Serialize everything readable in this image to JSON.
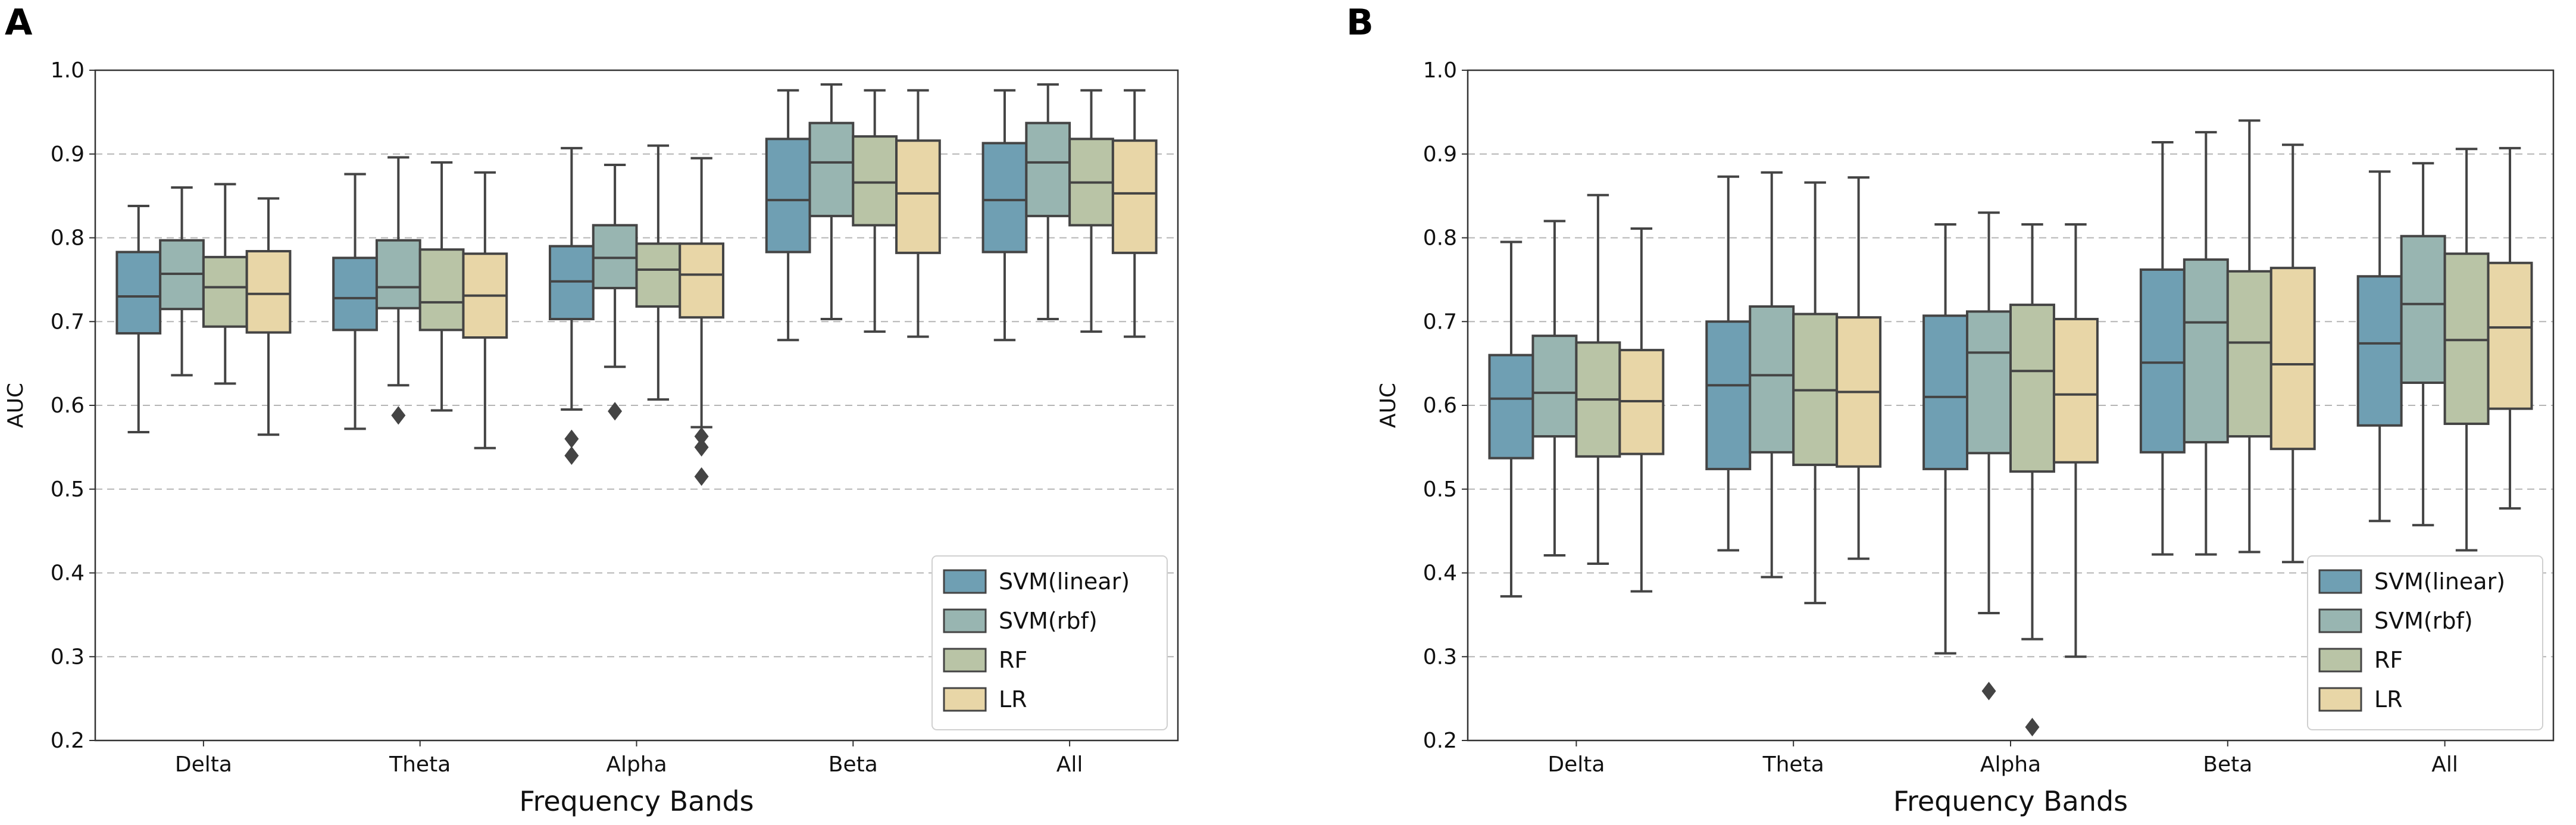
{
  "chart_data": [
    {
      "panel": "A",
      "type": "boxplot",
      "xlabel": "Frequency Bands",
      "ylabel": "AUC",
      "ylim": [
        0.2,
        1.0
      ],
      "yticks": [
        "0.2",
        "0.3",
        "0.4",
        "0.5",
        "0.6",
        "0.7",
        "0.8",
        "0.9",
        "1.0"
      ],
      "grid": "horizontal dashed",
      "legend_position": "lower-right",
      "categories": [
        "Delta",
        "Theta",
        "Alpha",
        "Beta",
        "All"
      ],
      "series": [
        {
          "name": "SVM(linear)",
          "color": "#6f9fb3",
          "boxes": [
            {
              "min": 0.568,
              "q1": 0.686,
              "median": 0.73,
              "q3": 0.783,
              "max": 0.838,
              "outliers": []
            },
            {
              "min": 0.572,
              "q1": 0.69,
              "median": 0.728,
              "q3": 0.776,
              "max": 0.876,
              "outliers": []
            },
            {
              "min": 0.595,
              "q1": 0.703,
              "median": 0.748,
              "q3": 0.79,
              "max": 0.907,
              "outliers": [
                0.56,
                0.54
              ]
            },
            {
              "min": 0.678,
              "q1": 0.783,
              "median": 0.845,
              "q3": 0.918,
              "max": 0.976,
              "outliers": []
            },
            {
              "min": 0.678,
              "q1": 0.783,
              "median": 0.845,
              "q3": 0.913,
              "max": 0.976,
              "outliers": []
            }
          ]
        },
        {
          "name": "SVM(rbf)",
          "color": "#98b5b1",
          "boxes": [
            {
              "min": 0.636,
              "q1": 0.715,
              "median": 0.757,
              "q3": 0.797,
              "max": 0.86,
              "outliers": []
            },
            {
              "min": 0.624,
              "q1": 0.716,
              "median": 0.741,
              "q3": 0.797,
              "max": 0.896,
              "outliers": [
                0.588
              ]
            },
            {
              "min": 0.646,
              "q1": 0.74,
              "median": 0.776,
              "q3": 0.815,
              "max": 0.887,
              "outliers": [
                0.593
              ]
            },
            {
              "min": 0.703,
              "q1": 0.826,
              "median": 0.89,
              "q3": 0.937,
              "max": 0.983,
              "outliers": []
            },
            {
              "min": 0.703,
              "q1": 0.826,
              "median": 0.89,
              "q3": 0.937,
              "max": 0.983,
              "outliers": []
            }
          ]
        },
        {
          "name": "RF",
          "color": "#b9c4a6",
          "boxes": [
            {
              "min": 0.626,
              "q1": 0.694,
              "median": 0.741,
              "q3": 0.777,
              "max": 0.864,
              "outliers": []
            },
            {
              "min": 0.594,
              "q1": 0.69,
              "median": 0.723,
              "q3": 0.786,
              "max": 0.89,
              "outliers": []
            },
            {
              "min": 0.607,
              "q1": 0.718,
              "median": 0.762,
              "q3": 0.793,
              "max": 0.91,
              "outliers": []
            },
            {
              "min": 0.688,
              "q1": 0.815,
              "median": 0.866,
              "q3": 0.921,
              "max": 0.976,
              "outliers": []
            },
            {
              "min": 0.688,
              "q1": 0.815,
              "median": 0.866,
              "q3": 0.918,
              "max": 0.976,
              "outliers": []
            }
          ]
        },
        {
          "name": "LR",
          "color": "#e8d6a7",
          "boxes": [
            {
              "min": 0.565,
              "q1": 0.687,
              "median": 0.733,
              "q3": 0.784,
              "max": 0.847,
              "outliers": []
            },
            {
              "min": 0.549,
              "q1": 0.681,
              "median": 0.731,
              "q3": 0.781,
              "max": 0.878,
              "outliers": []
            },
            {
              "min": 0.574,
              "q1": 0.705,
              "median": 0.756,
              "q3": 0.793,
              "max": 0.895,
              "outliers": [
                0.563,
                0.55,
                0.515
              ]
            },
            {
              "min": 0.682,
              "q1": 0.782,
              "median": 0.853,
              "q3": 0.916,
              "max": 0.976,
              "outliers": []
            },
            {
              "min": 0.682,
              "q1": 0.782,
              "median": 0.853,
              "q3": 0.916,
              "max": 0.976,
              "outliers": []
            }
          ]
        }
      ]
    },
    {
      "panel": "B",
      "type": "boxplot",
      "xlabel": "Frequency Bands",
      "ylabel": "AUC",
      "ylim": [
        0.2,
        1.0
      ],
      "yticks": [
        "0.2",
        "0.3",
        "0.4",
        "0.5",
        "0.6",
        "0.7",
        "0.8",
        "0.9",
        "1.0"
      ],
      "grid": "horizontal dashed",
      "legend_position": "lower-right",
      "categories": [
        "Delta",
        "Theta",
        "Alpha",
        "Beta",
        "All"
      ],
      "series": [
        {
          "name": "SVM(linear)",
          "color": "#6f9fb3",
          "boxes": [
            {
              "min": 0.372,
              "q1": 0.537,
              "median": 0.608,
              "q3": 0.66,
              "max": 0.795,
              "outliers": []
            },
            {
              "min": 0.427,
              "q1": 0.524,
              "median": 0.624,
              "q3": 0.7,
              "max": 0.873,
              "outliers": []
            },
            {
              "min": 0.304,
              "q1": 0.524,
              "median": 0.61,
              "q3": 0.707,
              "max": 0.816,
              "outliers": []
            },
            {
              "min": 0.422,
              "q1": 0.544,
              "median": 0.651,
              "q3": 0.762,
              "max": 0.914,
              "outliers": []
            },
            {
              "min": 0.462,
              "q1": 0.576,
              "median": 0.674,
              "q3": 0.754,
              "max": 0.879,
              "outliers": []
            }
          ]
        },
        {
          "name": "SVM(rbf)",
          "color": "#98b5b1",
          "boxes": [
            {
              "min": 0.421,
              "q1": 0.563,
              "median": 0.615,
              "q3": 0.683,
              "max": 0.82,
              "outliers": []
            },
            {
              "min": 0.395,
              "q1": 0.544,
              "median": 0.636,
              "q3": 0.718,
              "max": 0.878,
              "outliers": []
            },
            {
              "min": 0.352,
              "q1": 0.543,
              "median": 0.663,
              "q3": 0.712,
              "max": 0.83,
              "outliers": [
                0.259
              ]
            },
            {
              "min": 0.422,
              "q1": 0.556,
              "median": 0.699,
              "q3": 0.774,
              "max": 0.926,
              "outliers": []
            },
            {
              "min": 0.457,
              "q1": 0.627,
              "median": 0.721,
              "q3": 0.802,
              "max": 0.889,
              "outliers": []
            }
          ]
        },
        {
          "name": "RF",
          "color": "#b9c4a6",
          "boxes": [
            {
              "min": 0.411,
              "q1": 0.539,
              "median": 0.607,
              "q3": 0.675,
              "max": 0.851,
              "outliers": []
            },
            {
              "min": 0.364,
              "q1": 0.529,
              "median": 0.618,
              "q3": 0.709,
              "max": 0.866,
              "outliers": []
            },
            {
              "min": 0.321,
              "q1": 0.521,
              "median": 0.641,
              "q3": 0.72,
              "max": 0.816,
              "outliers": [
                0.216
              ]
            },
            {
              "min": 0.425,
              "q1": 0.563,
              "median": 0.675,
              "q3": 0.76,
              "max": 0.94,
              "outliers": []
            },
            {
              "min": 0.427,
              "q1": 0.578,
              "median": 0.678,
              "q3": 0.781,
              "max": 0.906,
              "outliers": []
            }
          ]
        },
        {
          "name": "LR",
          "color": "#e8d6a7",
          "boxes": [
            {
              "min": 0.378,
              "q1": 0.542,
              "median": 0.605,
              "q3": 0.666,
              "max": 0.811,
              "outliers": []
            },
            {
              "min": 0.417,
              "q1": 0.527,
              "median": 0.616,
              "q3": 0.705,
              "max": 0.872,
              "outliers": []
            },
            {
              "min": 0.3,
              "q1": 0.532,
              "median": 0.613,
              "q3": 0.703,
              "max": 0.816,
              "outliers": []
            },
            {
              "min": 0.413,
              "q1": 0.548,
              "median": 0.649,
              "q3": 0.764,
              "max": 0.911,
              "outliers": []
            },
            {
              "min": 0.477,
              "q1": 0.596,
              "median": 0.693,
              "q3": 0.77,
              "max": 0.907,
              "outliers": []
            }
          ]
        }
      ]
    }
  ]
}
